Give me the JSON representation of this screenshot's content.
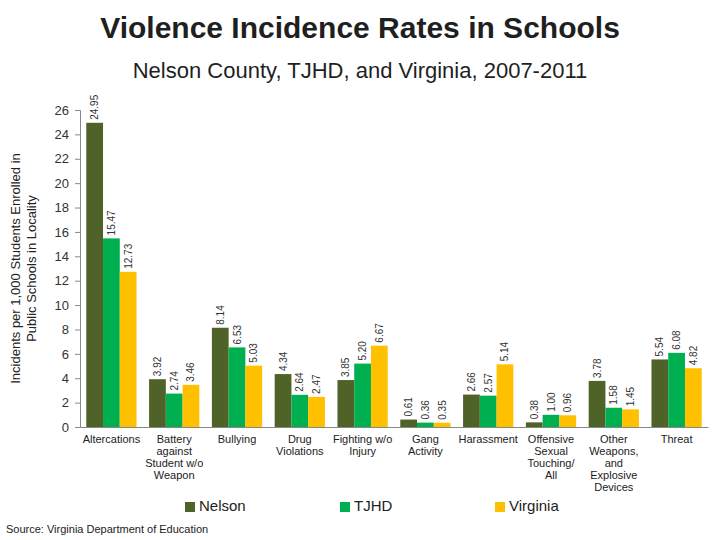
{
  "chart_data": {
    "type": "bar",
    "title": "Violence Incidence Rates in Schools",
    "subtitle": "Nelson County, TJHD, and Virginia, 2007-2011",
    "y_label": [
      "Incidents per 1,000 Students Enrolled in",
      "Public Schools in Locality"
    ],
    "source": "Source: Virginia Department of Education",
    "categories": [
      "Altercations",
      "Battery\nagainst\nStudent w/o\nWeapon",
      "Bullying",
      "Drug\nViolations",
      "Fighting w/o\nInjury",
      "Gang\nActivity",
      "Harassment",
      "Offensive\nSexual\nTouching/\nAll",
      "Other\nWeapons,\nand\nExplosive\nDevices",
      "Threat"
    ],
    "series": [
      {
        "name": "Nelson",
        "color": "#4f6228",
        "values": [
          24.95,
          3.92,
          8.14,
          4.34,
          3.85,
          0.61,
          2.66,
          0.38,
          3.78,
          5.54
        ],
        "value_labels": [
          "24.95",
          "3.92",
          "8.14",
          "4.34",
          "3.85",
          "0.61",
          "2.66",
          "0.38",
          "3.78",
          "5.54"
        ]
      },
      {
        "name": "TJHD",
        "color": "#00b050",
        "values": [
          15.47,
          2.74,
          6.53,
          2.64,
          5.2,
          0.36,
          2.57,
          1.0,
          1.58,
          6.08
        ],
        "value_labels": [
          "15.47",
          "2.74",
          "6.53",
          "2.64",
          "5.20",
          "0.36",
          "2.57",
          "1.00",
          "1.58",
          "6.08"
        ]
      },
      {
        "name": "Virginia",
        "color": "#ffc000",
        "values": [
          12.73,
          3.46,
          5.03,
          2.47,
          6.67,
          0.35,
          5.14,
          0.96,
          1.45,
          4.82
        ],
        "value_labels": [
          "12.73",
          "3.46",
          "5.03",
          "2.47",
          "6.67",
          "0.35",
          "5.14",
          "0.96",
          "1.45",
          "4.82"
        ]
      }
    ],
    "ylim": [
      0,
      26
    ],
    "yticks": [
      0,
      2,
      4,
      6,
      8,
      10,
      12,
      14,
      16,
      18,
      20,
      22,
      24,
      26
    ],
    "grid": false,
    "legend": "bottom",
    "data_labels": true
  }
}
